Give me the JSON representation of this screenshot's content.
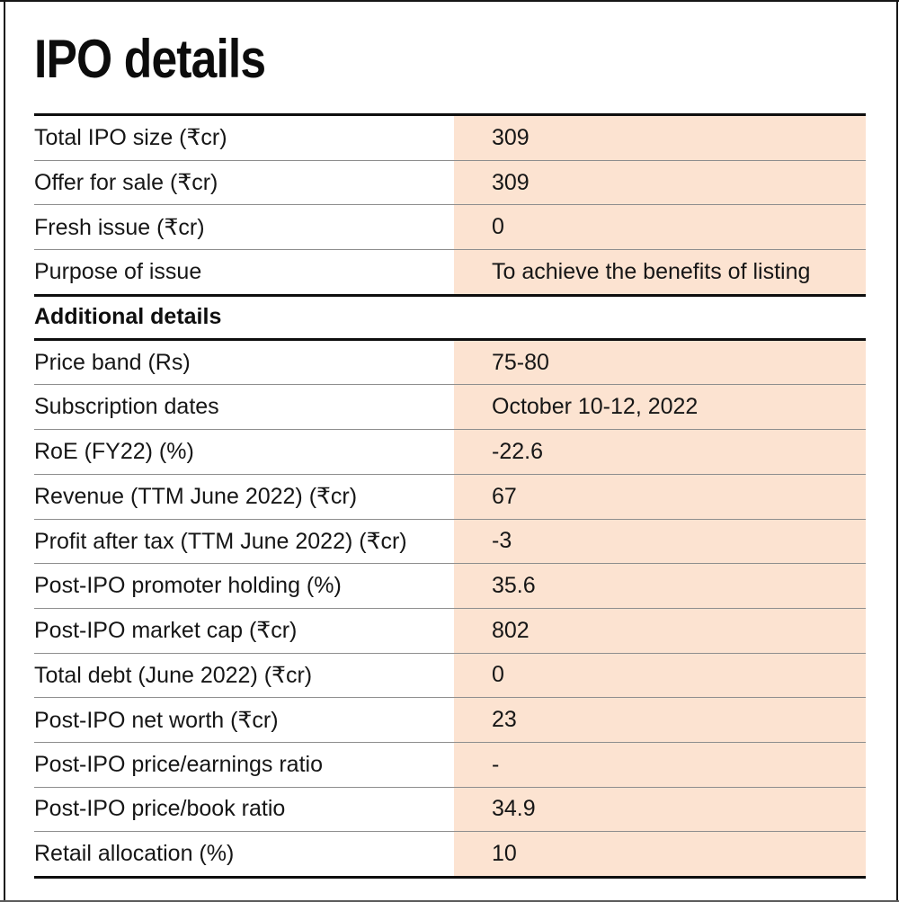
{
  "title": "IPO details",
  "colors": {
    "value_highlight": "#fce3d1",
    "separator": "#8e8e8e",
    "rule": "#0e0e0e",
    "text": "#161616"
  },
  "table": {
    "sections": [
      {
        "heading": null,
        "rows": [
          {
            "label": "Total IPO size (₹cr)",
            "value": "309"
          },
          {
            "label": "Offer for sale (₹cr)",
            "value": "309"
          },
          {
            "label": "Fresh issue (₹cr)",
            "value": "0"
          },
          {
            "label": "Purpose of issue",
            "value": "To achieve the benefits of listing"
          }
        ]
      },
      {
        "heading": "Additional details",
        "rows": [
          {
            "label": "Price band (Rs)",
            "value": "75-80"
          },
          {
            "label": "Subscription dates",
            "value": "October 10-12, 2022"
          },
          {
            "label": "RoE (FY22) (%)",
            "value": "-22.6"
          },
          {
            "label": "Revenue (TTM June 2022) (₹cr)",
            "value": "67"
          },
          {
            "label": "Profit after tax (TTM June 2022) (₹cr)",
            "value": "-3"
          },
          {
            "label": "Post-IPO promoter holding (%)",
            "value": "35.6"
          },
          {
            "label": "Post-IPO market cap (₹cr)",
            "value": "802"
          },
          {
            "label": "Total debt (June 2022) (₹cr)",
            "value": "0"
          },
          {
            "label": "Post-IPO net worth (₹cr)",
            "value": "23"
          },
          {
            "label": "Post-IPO price/earnings ratio",
            "value": "-"
          },
          {
            "label": "Post-IPO price/book ratio",
            "value": "34.9"
          },
          {
            "label": "Retail allocation (%)",
            "value": "10"
          }
        ]
      }
    ]
  }
}
